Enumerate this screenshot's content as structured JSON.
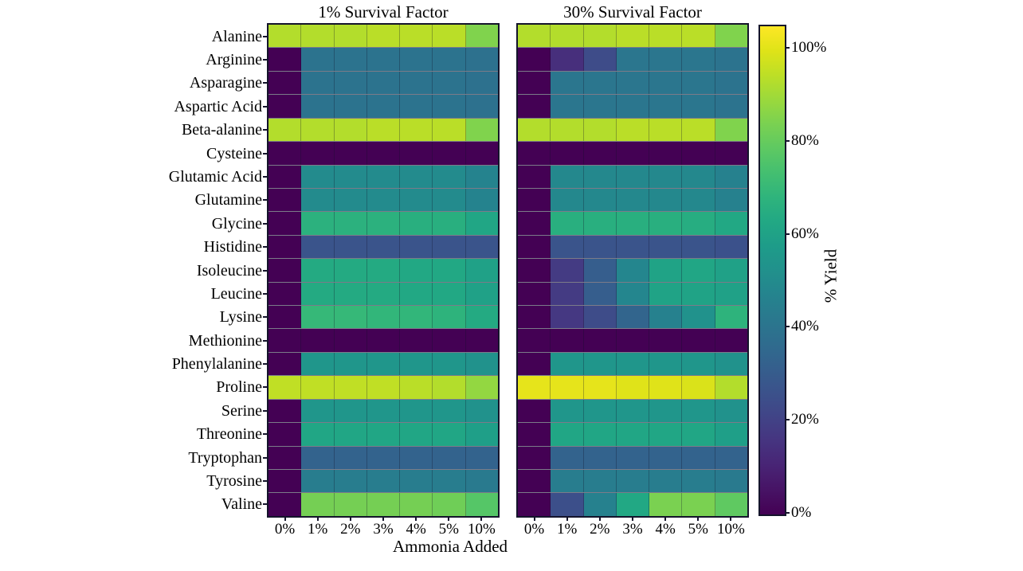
{
  "figure": {
    "background": "#ffffff",
    "frame_color": "#14142b"
  },
  "chart_data": {
    "type": "heatmap",
    "colormap": "viridis",
    "vmin": 0,
    "vmax": 105,
    "xlabel": "Ammonia Added",
    "columns": [
      "0%",
      "1%",
      "2%",
      "3%",
      "4%",
      "5%",
      "10%"
    ],
    "rows": [
      "Alanine",
      "Arginine",
      "Asparagine",
      "Aspartic Acid",
      "Beta-alanine",
      "Cysteine",
      "Glutamic Acid",
      "Glutamine",
      "Glycine",
      "Histidine",
      "Isoleucine",
      "Leucine",
      "Lysine",
      "Methionine",
      "Phenylalanine",
      "Proline",
      "Serine",
      "Threonine",
      "Tryptophan",
      "Tyrosine",
      "Valine"
    ],
    "colorbar": {
      "label": "% Yield",
      "ticks": [
        "0%",
        "20%",
        "40%",
        "60%",
        "80%",
        "100%"
      ],
      "tick_values": [
        0,
        20,
        40,
        60,
        80,
        100
      ]
    },
    "panels": [
      {
        "title": "1% Survival Factor",
        "values": [
          [
            93,
            93,
            93,
            94,
            94,
            94,
            85
          ],
          [
            0,
            40,
            40,
            40,
            40,
            40,
            39
          ],
          [
            0,
            40,
            40,
            40,
            40,
            40,
            39
          ],
          [
            0,
            40,
            40,
            40,
            40,
            40,
            39
          ],
          [
            93,
            93,
            93,
            94,
            94,
            94,
            85
          ],
          [
            0,
            0,
            0,
            0,
            0,
            0,
            0
          ],
          [
            0,
            50,
            50,
            50,
            50,
            50,
            47
          ],
          [
            0,
            50,
            50,
            50,
            50,
            50,
            47
          ],
          [
            0,
            67,
            67,
            67,
            66,
            66,
            62
          ],
          [
            0,
            27,
            27,
            27,
            27,
            27,
            27
          ],
          [
            0,
            64,
            64,
            64,
            63,
            63,
            60
          ],
          [
            0,
            64,
            64,
            64,
            63,
            63,
            60
          ],
          [
            0,
            70,
            70,
            69,
            69,
            68,
            64
          ],
          [
            0,
            0,
            0,
            0,
            0,
            0,
            0
          ],
          [
            0,
            55,
            55,
            55,
            55,
            55,
            53
          ],
          [
            95,
            95,
            95,
            95,
            94,
            93,
            88
          ],
          [
            0,
            55,
            55,
            55,
            55,
            55,
            53
          ],
          [
            0,
            62,
            62,
            62,
            62,
            62,
            59
          ],
          [
            0,
            33,
            33,
            33,
            33,
            33,
            33
          ],
          [
            0,
            44,
            44,
            44,
            44,
            44,
            43
          ],
          [
            0,
            83,
            83,
            83,
            83,
            82,
            77
          ]
        ]
      },
      {
        "title": "30% Survival Factor",
        "values": [
          [
            93,
            93,
            93,
            94,
            94,
            94,
            85
          ],
          [
            0,
            14,
            24,
            41,
            41,
            41,
            40
          ],
          [
            0,
            41,
            41,
            41,
            41,
            41,
            40
          ],
          [
            0,
            41,
            41,
            41,
            41,
            41,
            40
          ],
          [
            93,
            93,
            93,
            94,
            94,
            94,
            85
          ],
          [
            0,
            0,
            0,
            0,
            0,
            0,
            0
          ],
          [
            0,
            49,
            49,
            49,
            49,
            49,
            46
          ],
          [
            0,
            49,
            49,
            49,
            49,
            49,
            46
          ],
          [
            0,
            66,
            66,
            66,
            66,
            65,
            63
          ],
          [
            0,
            27,
            27,
            27,
            27,
            27,
            26
          ],
          [
            0,
            18,
            31,
            48,
            61,
            62,
            60
          ],
          [
            0,
            18,
            31,
            48,
            61,
            61,
            60
          ],
          [
            0,
            17,
            24,
            34,
            46,
            53,
            68
          ],
          [
            0,
            0,
            0,
            0,
            0,
            0,
            0
          ],
          [
            0,
            55,
            55,
            55,
            55,
            55,
            53
          ],
          [
            101,
            101,
            101,
            100,
            100,
            99,
            93
          ],
          [
            0,
            55,
            55,
            55,
            55,
            55,
            53
          ],
          [
            0,
            62,
            62,
            62,
            62,
            62,
            59
          ],
          [
            0,
            33,
            33,
            33,
            33,
            33,
            33
          ],
          [
            0,
            44,
            44,
            44,
            44,
            44,
            43
          ],
          [
            0,
            25,
            46,
            63,
            84,
            84,
            79
          ]
        ]
      }
    ]
  }
}
